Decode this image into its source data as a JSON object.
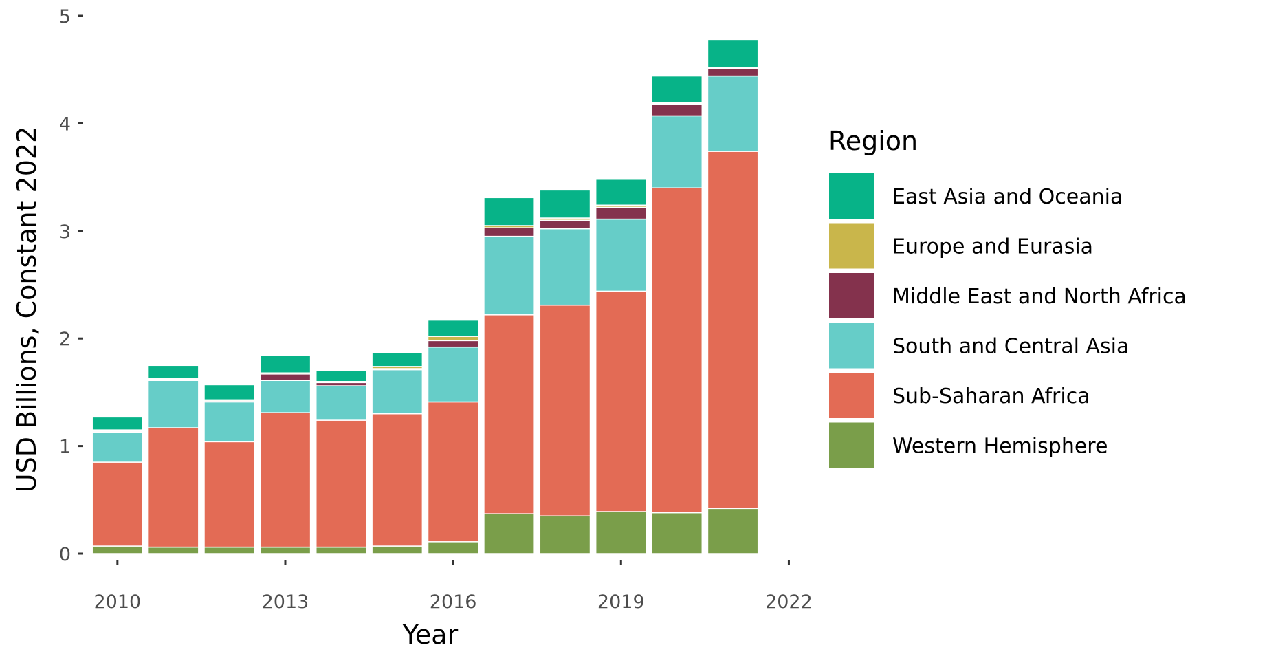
{
  "chart_data": {
    "type": "bar",
    "stacked": true,
    "x": [
      2010,
      2011,
      2012,
      2013,
      2014,
      2015,
      2016,
      2017,
      2018,
      2019,
      2020,
      2021
    ],
    "xlabel": "Year",
    "ylabel": "USD Billions, Constant 2022",
    "xticks": [
      "2010",
      "2013",
      "2016",
      "2019",
      "2022"
    ],
    "yticks": [
      "0",
      "1",
      "2",
      "3",
      "4",
      "5"
    ],
    "ylim": [
      0,
      5
    ],
    "xlim": [
      2009.4,
      2022.4
    ],
    "grid": false,
    "legend": {
      "title": "Region",
      "position": "right",
      "entries": [
        "East Asia and Oceania",
        "Europe and Eurasia",
        "Middle East and North Africa",
        "South and Central Asia",
        "Sub-Saharan Africa",
        "Western Hemisphere"
      ]
    },
    "series": [
      {
        "name": "Western Hemisphere",
        "color": "#7a9e4a",
        "values": [
          0.07,
          0.06,
          0.06,
          0.06,
          0.06,
          0.07,
          0.11,
          0.37,
          0.35,
          0.39,
          0.38,
          0.42
        ]
      },
      {
        "name": "Sub-Saharan Africa",
        "color": "#e36b55",
        "values": [
          0.78,
          1.11,
          0.98,
          1.25,
          1.18,
          1.23,
          1.3,
          1.85,
          1.96,
          2.05,
          3.02,
          3.32
        ]
      },
      {
        "name": "South and Central Asia",
        "color": "#66cdc8",
        "values": [
          0.28,
          0.44,
          0.37,
          0.3,
          0.32,
          0.41,
          0.51,
          0.73,
          0.71,
          0.67,
          0.67,
          0.7
        ]
      },
      {
        "name": "Middle East and North Africa",
        "color": "#84324d",
        "values": [
          0.01,
          0.01,
          0.01,
          0.06,
          0.03,
          0.01,
          0.06,
          0.08,
          0.08,
          0.11,
          0.11,
          0.07
        ]
      },
      {
        "name": "Europe and Eurasia",
        "color": "#c9b64b",
        "values": [
          0.01,
          0.01,
          0.01,
          0.01,
          0.01,
          0.02,
          0.04,
          0.02,
          0.02,
          0.02,
          0.01,
          0.01
        ]
      },
      {
        "name": "East Asia and Oceania",
        "color": "#07b388",
        "values": [
          0.12,
          0.12,
          0.14,
          0.16,
          0.1,
          0.13,
          0.15,
          0.26,
          0.26,
          0.24,
          0.25,
          0.26
        ]
      }
    ]
  }
}
